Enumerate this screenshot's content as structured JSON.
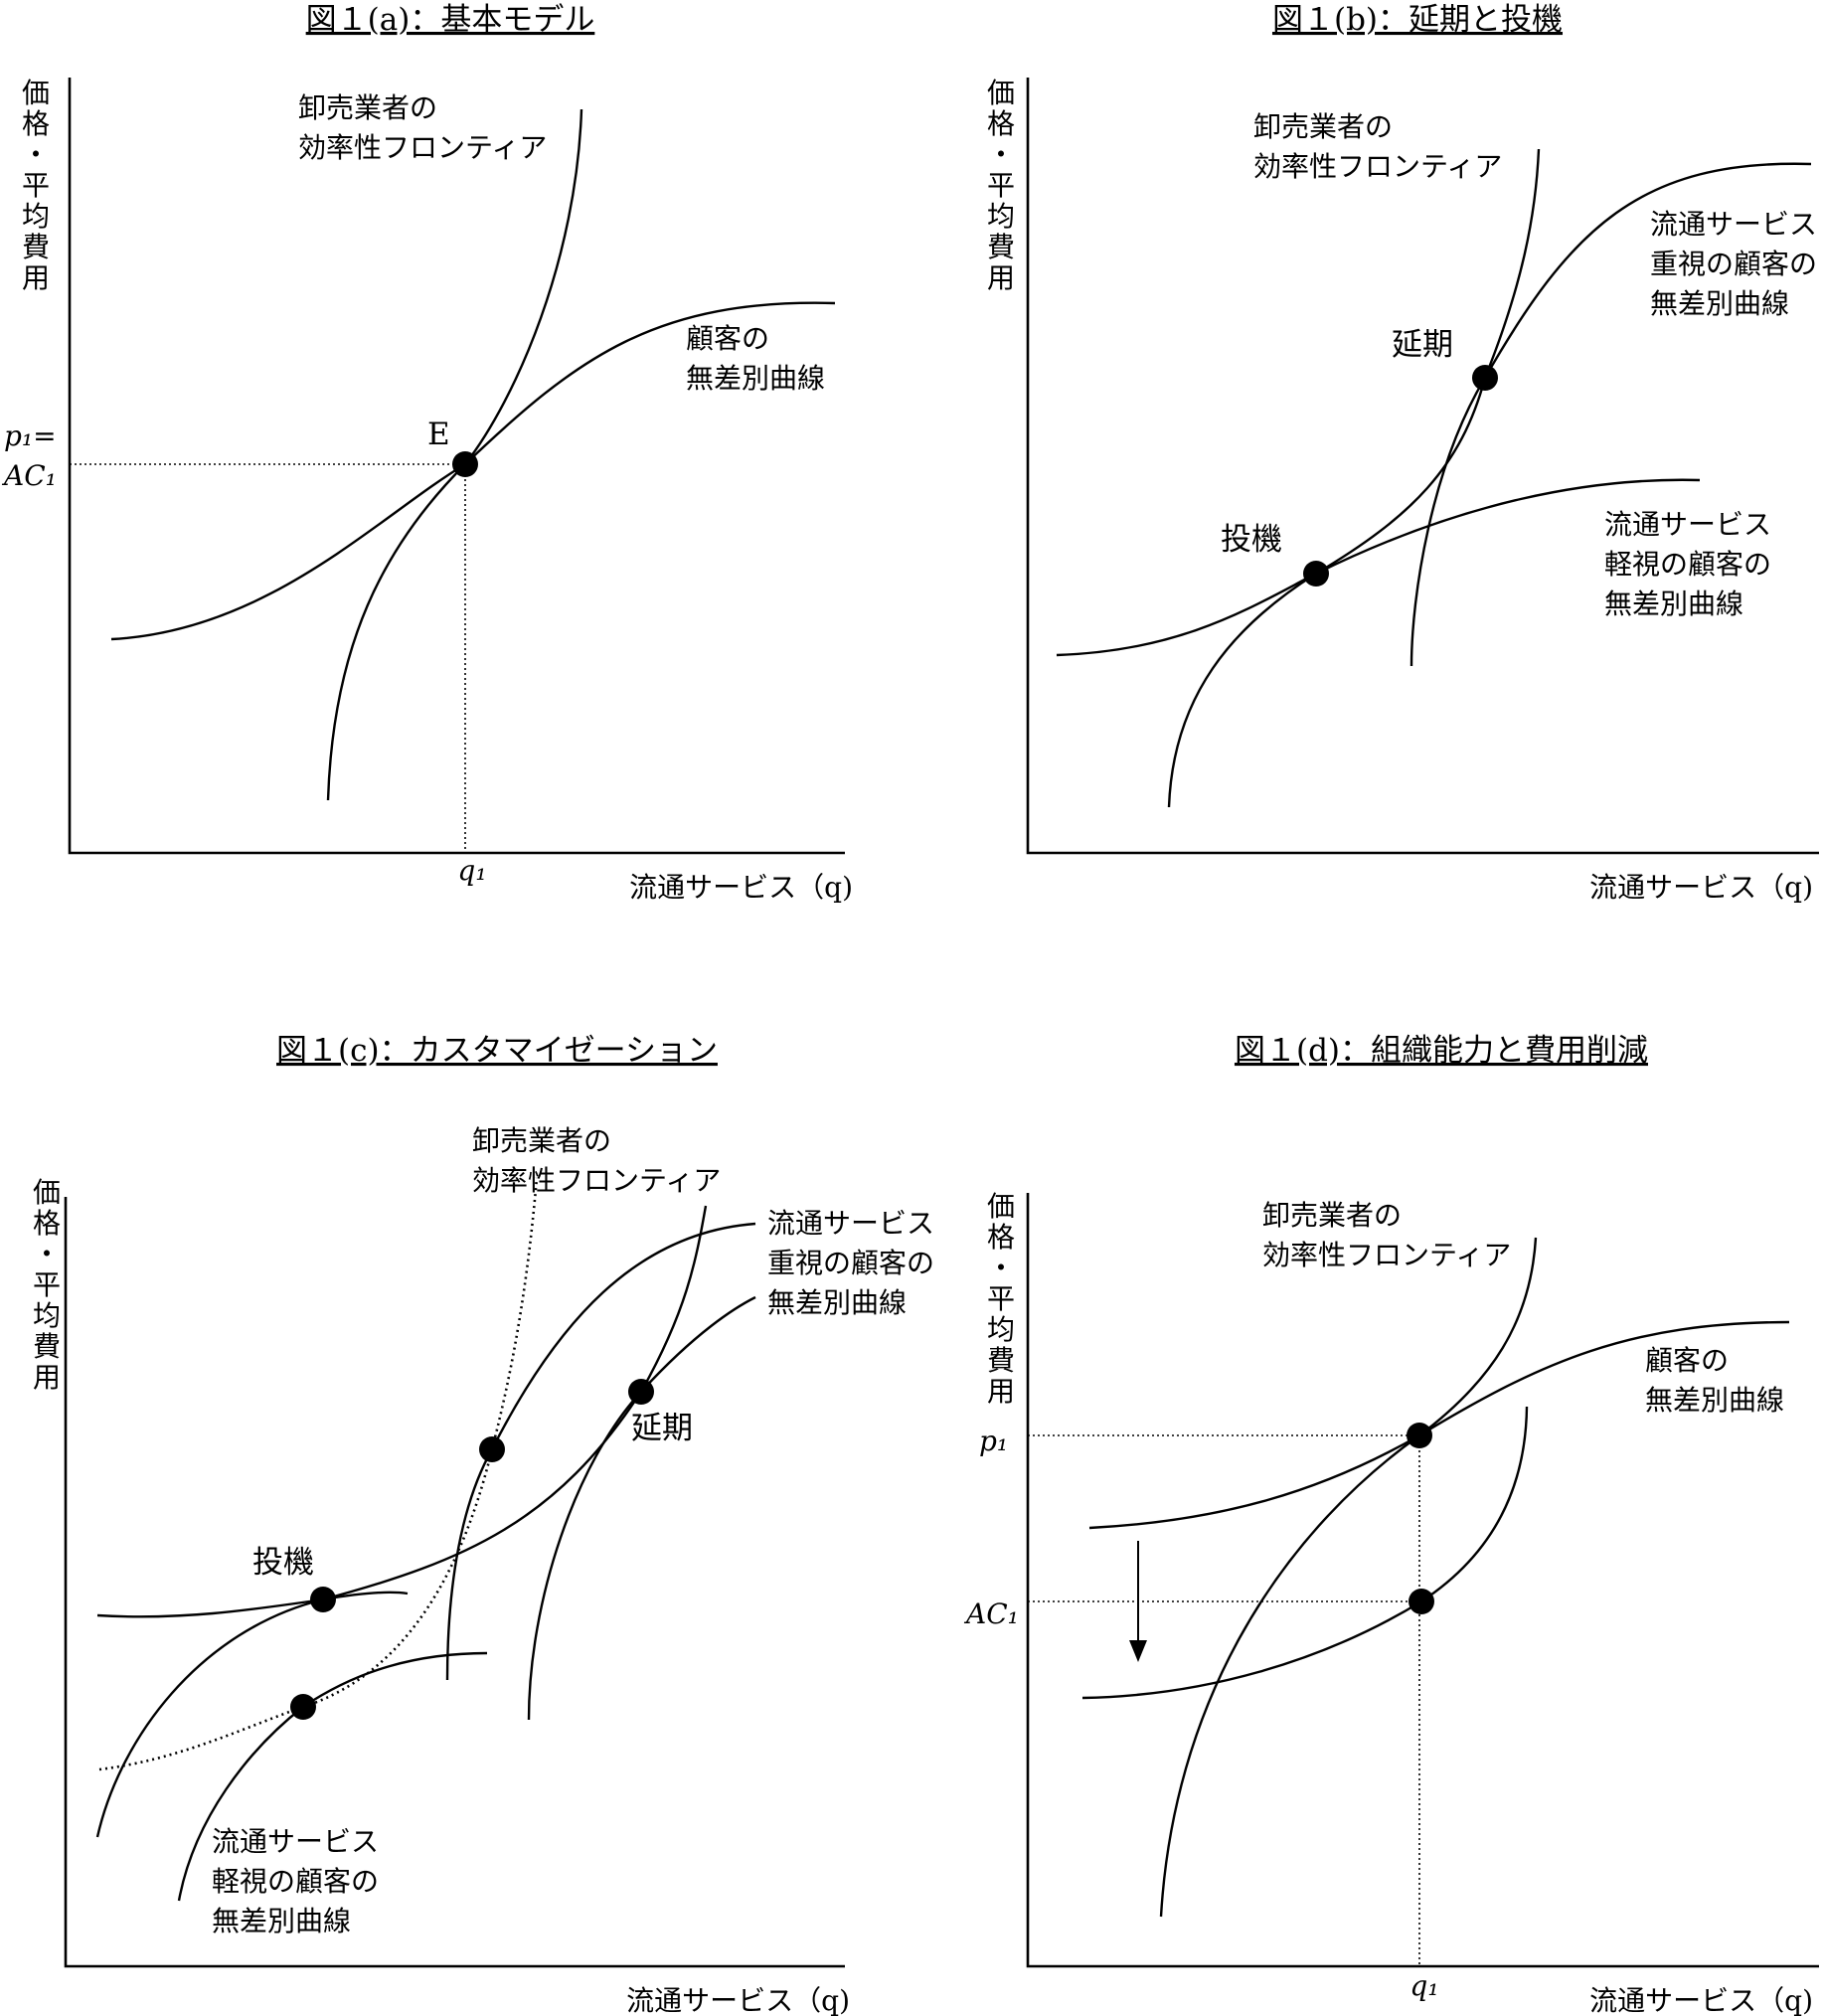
{
  "panel_a": {
    "title": "図１(a)：基本モデル",
    "y_axis": [
      "価",
      "格",
      "・",
      "平",
      "均",
      "費",
      "用"
    ],
    "x_axis": "流通サービス（q)",
    "frontier": [
      "卸売業者の",
      "効率性フロンティア"
    ],
    "indiff": [
      "顧客の",
      "無差別曲線"
    ],
    "point_E": "E",
    "p1_line1": "p₁=",
    "p1_line2": "AC₁",
    "q1": "q₁"
  },
  "panel_b": {
    "title": "図１(b)：延期と投機",
    "y_axis": [
      "価",
      "格",
      "・",
      "平",
      "均",
      "費",
      "用"
    ],
    "x_axis": "流通サービス（q)",
    "frontier": [
      "卸売業者の",
      "効率性フロンティア"
    ],
    "indiff_high": [
      "流通サービス",
      "重視の顧客の",
      "無差別曲線"
    ],
    "indiff_low": [
      "流通サービス",
      "軽視の顧客の",
      "無差別曲線"
    ],
    "postponement": "延期",
    "speculation": "投機"
  },
  "panel_c": {
    "title": "図１(c)：カスタマイゼーション",
    "y_axis": [
      "価",
      "格",
      "・",
      "平",
      "均",
      "費",
      "用"
    ],
    "x_axis": "流通サービス（q)",
    "frontier": [
      "卸売業者の",
      "効率性フロンティア"
    ],
    "indiff_high": [
      "流通サービス",
      "重視の顧客の",
      "無差別曲線"
    ],
    "indiff_low": [
      "流通サービス",
      "軽視の顧客の",
      "無差別曲線"
    ],
    "postponement": "延期",
    "speculation": "投機"
  },
  "panel_d": {
    "title": "図１(d)：組織能力と費用削減",
    "y_axis": [
      "価",
      "格",
      "・",
      "平",
      "均",
      "費",
      "用"
    ],
    "x_axis": "流通サービス（q)",
    "frontier": [
      "卸売業者の",
      "効率性フロンティア"
    ],
    "indiff": [
      "顧客の",
      "無差別曲線"
    ],
    "p1": "p₁",
    "ac1": "AC₁",
    "q1": "q₁"
  }
}
